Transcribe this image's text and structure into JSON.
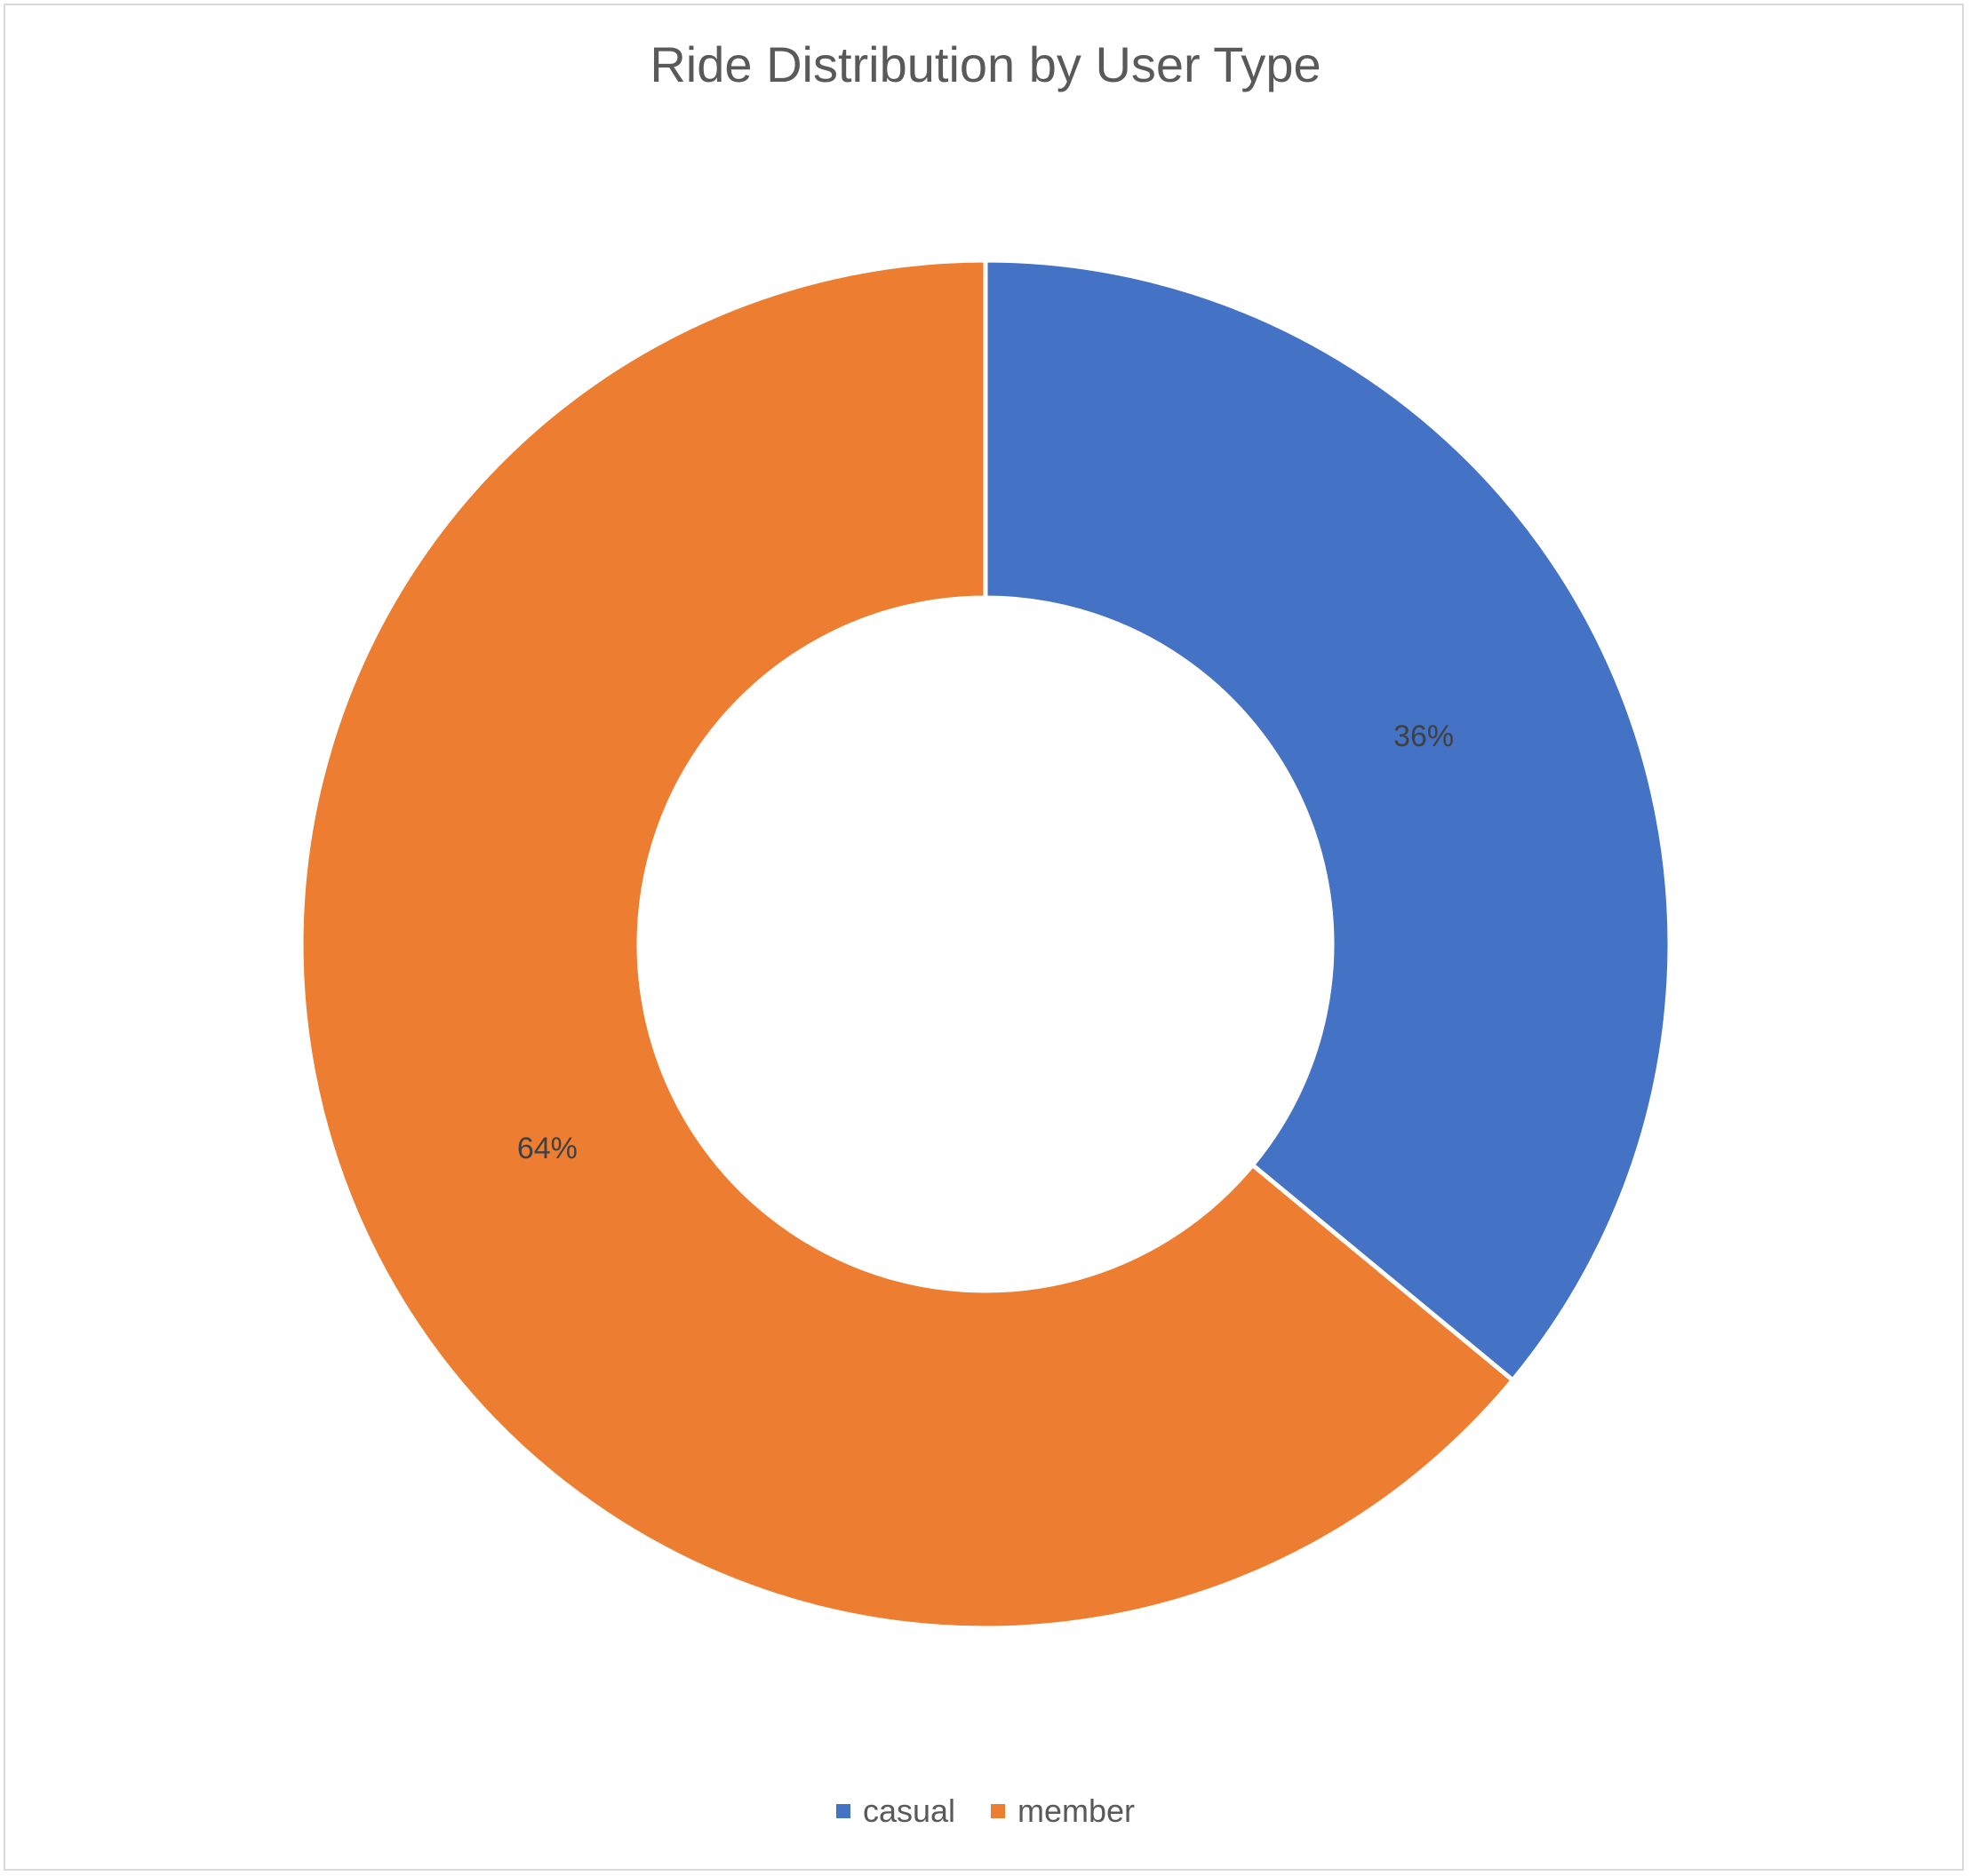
{
  "chart_data": {
    "type": "pie",
    "variant": "doughnut",
    "title": "Ride Distribution by User Type",
    "categories": [
      "casual",
      "member"
    ],
    "values": [
      36,
      64
    ],
    "data_labels": [
      "36%",
      "64%"
    ],
    "colors": [
      "#4472C4",
      "#ED7D31"
    ],
    "legend": "bottom"
  }
}
